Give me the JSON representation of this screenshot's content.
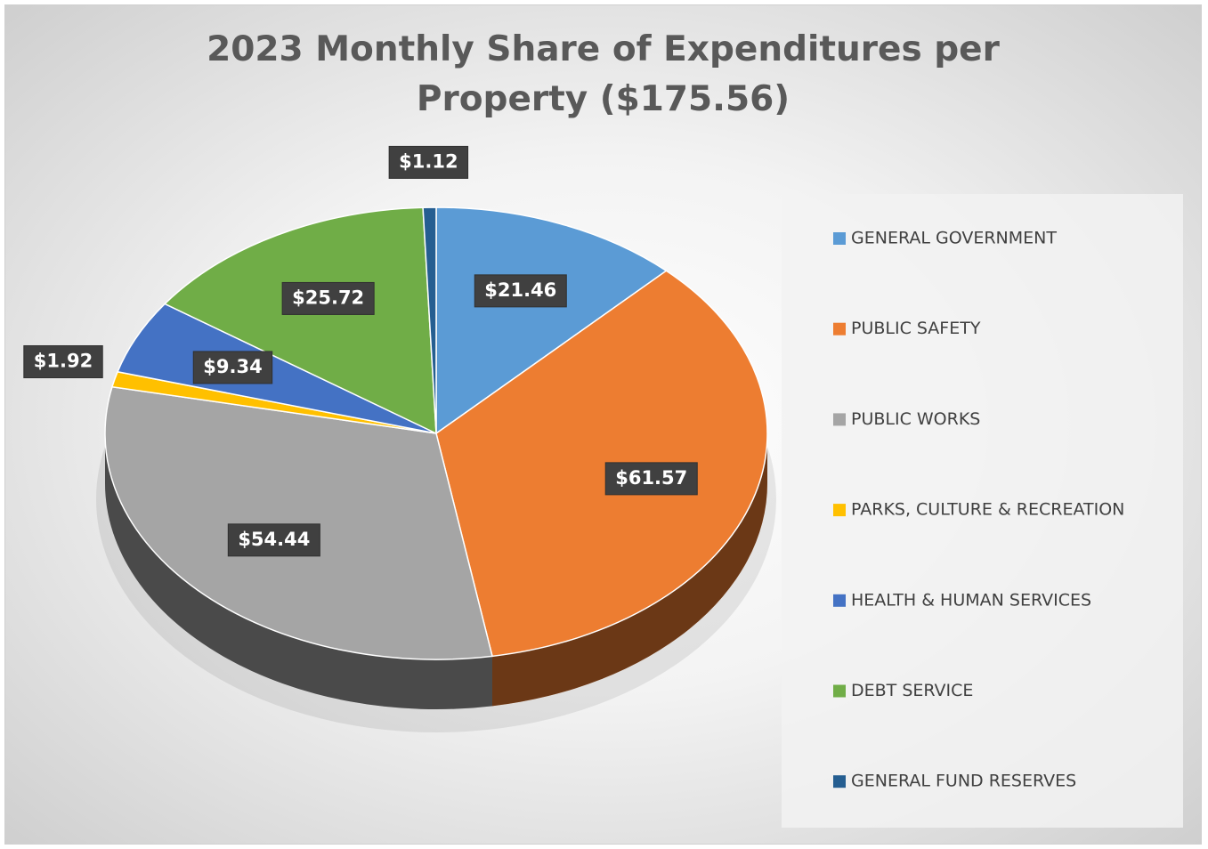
{
  "chart_data": {
    "type": "pie3d",
    "title": "2023 Monthly Share of Expenditures per Property ($175.56)",
    "categories": [
      "GENERAL GOVERNMENT",
      "PUBLIC SAFETY",
      "PUBLIC WORKS",
      "PARKS, CULTURE & RECREATION",
      "HEALTH & HUMAN SERVICES",
      "DEBT SERVICE",
      "GENERAL FUND RESERVES"
    ],
    "values": [
      21.46,
      61.57,
      54.44,
      1.92,
      9.34,
      25.72,
      1.12
    ],
    "value_labels": [
      "$21.46",
      "$61.57",
      "$54.44",
      "$1.92",
      "$9.34",
      "$25.72",
      "$1.12"
    ],
    "colors": [
      "#5b9bd5",
      "#ed7d31",
      "#a5a5a5",
      "#ffc000",
      "#4472c4",
      "#70ad47",
      "#255e91"
    ],
    "legend": "right"
  }
}
